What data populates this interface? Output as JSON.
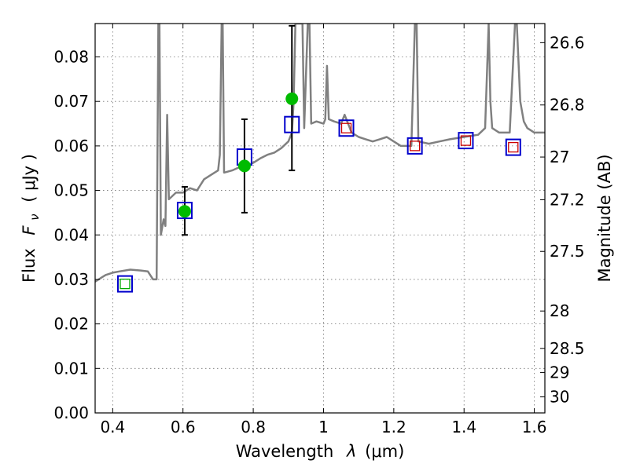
{
  "chart_data": {
    "type": "scatter",
    "xlabel_text": "Wavelength",
    "xlabel_symbol": "λ",
    "xlabel_unit": "(μm)",
    "ylabel_text": "Flux",
    "ylabel_symbol": "F",
    "ylabel_subscript": "ν",
    "ylabel_unit": "( μJy )",
    "y2label": "Magnitude (AB)",
    "xlim": [
      0.35,
      1.63
    ],
    "ylim": [
      0.0,
      0.0875
    ],
    "grid": true,
    "x_ticks": [
      0.4,
      0.6,
      0.8,
      1.0,
      1.2,
      1.4,
      1.6
    ],
    "x_tick_labels": [
      "0.4",
      "0.6",
      "0.8",
      "1",
      "1.2",
      "1.4",
      "1.6"
    ],
    "y_ticks": [
      0.0,
      0.01,
      0.02,
      0.03,
      0.04,
      0.05,
      0.06,
      0.07,
      0.08
    ],
    "y_tick_labels": [
      "0.00",
      "0.01",
      "0.02",
      "0.03",
      "0.04",
      "0.05",
      "0.06",
      "0.07",
      "0.08"
    ],
    "y2_ticks": [
      {
        "label": "26.6",
        "flux": 0.0832
      },
      {
        "label": "26.8",
        "flux": 0.0692
      },
      {
        "label": "27",
        "flux": 0.0575
      },
      {
        "label": "27.2",
        "flux": 0.0479
      },
      {
        "label": "27.5",
        "flux": 0.0363
      },
      {
        "label": "28",
        "flux": 0.0229
      },
      {
        "label": "28.5",
        "flux": 0.0145
      },
      {
        "label": "29",
        "flux": 0.0091
      },
      {
        "label": "30",
        "flux": 0.0036
      }
    ],
    "model_sed": {
      "color": "#808080",
      "points": [
        [
          0.35,
          0.0295
        ],
        [
          0.37,
          0.0305
        ],
        [
          0.38,
          0.031
        ],
        [
          0.4,
          0.0315
        ],
        [
          0.42,
          0.0318
        ],
        [
          0.45,
          0.0322
        ],
        [
          0.48,
          0.032
        ],
        [
          0.5,
          0.0318
        ],
        [
          0.515,
          0.03
        ],
        [
          0.52,
          0.03
        ],
        [
          0.525,
          0.03
        ],
        [
          0.53,
          0.0875
        ],
        [
          0.533,
          0.0875
        ],
        [
          0.537,
          0.04
        ],
        [
          0.545,
          0.0435
        ],
        [
          0.55,
          0.042
        ],
        [
          0.555,
          0.067
        ],
        [
          0.56,
          0.048
        ],
        [
          0.58,
          0.0495
        ],
        [
          0.6,
          0.0495
        ],
        [
          0.62,
          0.0505
        ],
        [
          0.64,
          0.05
        ],
        [
          0.66,
          0.0525
        ],
        [
          0.68,
          0.0535
        ],
        [
          0.7,
          0.0545
        ],
        [
          0.705,
          0.058
        ],
        [
          0.71,
          0.0875
        ],
        [
          0.713,
          0.0875
        ],
        [
          0.717,
          0.054
        ],
        [
          0.74,
          0.0545
        ],
        [
          0.76,
          0.0552
        ],
        [
          0.78,
          0.0555
        ],
        [
          0.8,
          0.0562
        ],
        [
          0.82,
          0.0572
        ],
        [
          0.84,
          0.058
        ],
        [
          0.86,
          0.0585
        ],
        [
          0.88,
          0.0595
        ],
        [
          0.9,
          0.061
        ],
        [
          0.91,
          0.063
        ],
        [
          0.915,
          0.07
        ],
        [
          0.92,
          0.0875
        ],
        [
          0.94,
          0.0875
        ],
        [
          0.945,
          0.064
        ],
        [
          0.955,
          0.0875
        ],
        [
          0.96,
          0.0875
        ],
        [
          0.965,
          0.065
        ],
        [
          0.98,
          0.0655
        ],
        [
          1.0,
          0.065
        ],
        [
          1.005,
          0.066
        ],
        [
          1.01,
          0.078
        ],
        [
          1.015,
          0.066
        ],
        [
          1.03,
          0.0655
        ],
        [
          1.05,
          0.065
        ],
        [
          1.06,
          0.067
        ],
        [
          1.08,
          0.063
        ],
        [
          1.1,
          0.062
        ],
        [
          1.12,
          0.0615
        ],
        [
          1.14,
          0.061
        ],
        [
          1.16,
          0.0615
        ],
        [
          1.18,
          0.062
        ],
        [
          1.2,
          0.061
        ],
        [
          1.22,
          0.06
        ],
        [
          1.25,
          0.06
        ],
        [
          1.26,
          0.0875
        ],
        [
          1.265,
          0.0875
        ],
        [
          1.27,
          0.061
        ],
        [
          1.3,
          0.0605
        ],
        [
          1.33,
          0.061
        ],
        [
          1.36,
          0.0615
        ],
        [
          1.4,
          0.062
        ],
        [
          1.44,
          0.0625
        ],
        [
          1.46,
          0.064
        ],
        [
          1.47,
          0.0875
        ],
        [
          1.475,
          0.07
        ],
        [
          1.48,
          0.064
        ],
        [
          1.5,
          0.063
        ],
        [
          1.52,
          0.063
        ],
        [
          1.53,
          0.063
        ],
        [
          1.545,
          0.0875
        ],
        [
          1.55,
          0.0875
        ],
        [
          1.56,
          0.07
        ],
        [
          1.57,
          0.0655
        ],
        [
          1.58,
          0.064
        ],
        [
          1.6,
          0.063
        ],
        [
          1.63,
          0.063
        ]
      ]
    },
    "series": [
      {
        "marker": "square",
        "color": "#0000cc",
        "points": [
          {
            "x": 0.435,
            "y": 0.029
          },
          {
            "x": 0.605,
            "y": 0.0455
          },
          {
            "x": 0.775,
            "y": 0.0575
          },
          {
            "x": 0.91,
            "y": 0.0648
          },
          {
            "x": 1.065,
            "y": 0.064
          },
          {
            "x": 1.26,
            "y": 0.06
          },
          {
            "x": 1.405,
            "y": 0.0612
          },
          {
            "x": 1.54,
            "y": 0.0597
          }
        ]
      },
      {
        "marker": "small-square",
        "color": "#cc0000",
        "points": [
          {
            "x": 1.065,
            "y": 0.064
          },
          {
            "x": 1.26,
            "y": 0.06
          },
          {
            "x": 1.405,
            "y": 0.0612
          },
          {
            "x": 1.54,
            "y": 0.0597
          }
        ]
      },
      {
        "marker": "small-square",
        "color": "#00aa00",
        "points": [
          {
            "x": 0.435,
            "y": 0.029
          }
        ]
      },
      {
        "marker": "circle",
        "color": "#00bb00",
        "points": [
          {
            "x": 0.605,
            "y": 0.0453,
            "yerr_low": 0.04,
            "yerr_high": 0.0508
          },
          {
            "x": 0.775,
            "y": 0.0555,
            "yerr_low": 0.045,
            "yerr_high": 0.066
          },
          {
            "x": 0.91,
            "y": 0.0706,
            "yerr_low": 0.0545,
            "yerr_high": 0.087
          }
        ]
      }
    ]
  }
}
